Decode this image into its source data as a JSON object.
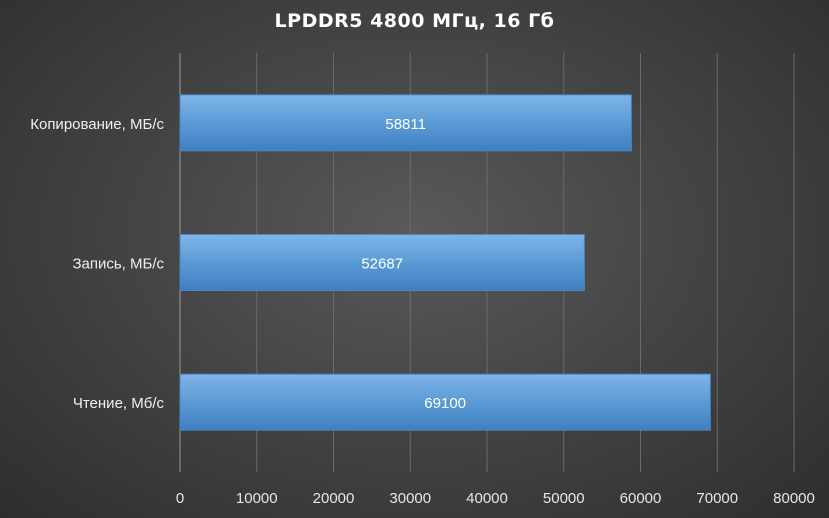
{
  "chart_data": {
    "type": "bar",
    "orientation": "horizontal",
    "title": "LPDDR5 4800 МГц, 16 Гб",
    "categories": [
      "Копирование, МБ/с",
      "Запись, МБ/с",
      "Чтение, Мб/с"
    ],
    "values": [
      58811,
      52687,
      69100
    ],
    "xlim": [
      0,
      80000
    ],
    "x_ticks": [
      "0",
      "10000",
      "20000",
      "30000",
      "40000",
      "50000",
      "60000",
      "70000",
      "80000"
    ],
    "grid": true,
    "legend": "none",
    "colors": {
      "bar": "#5b9bd5",
      "bar_light": "#79b0e6",
      "bar_dark": "#3f7fc1",
      "grid": "#6a6a6a",
      "text": "#ffffff"
    }
  }
}
